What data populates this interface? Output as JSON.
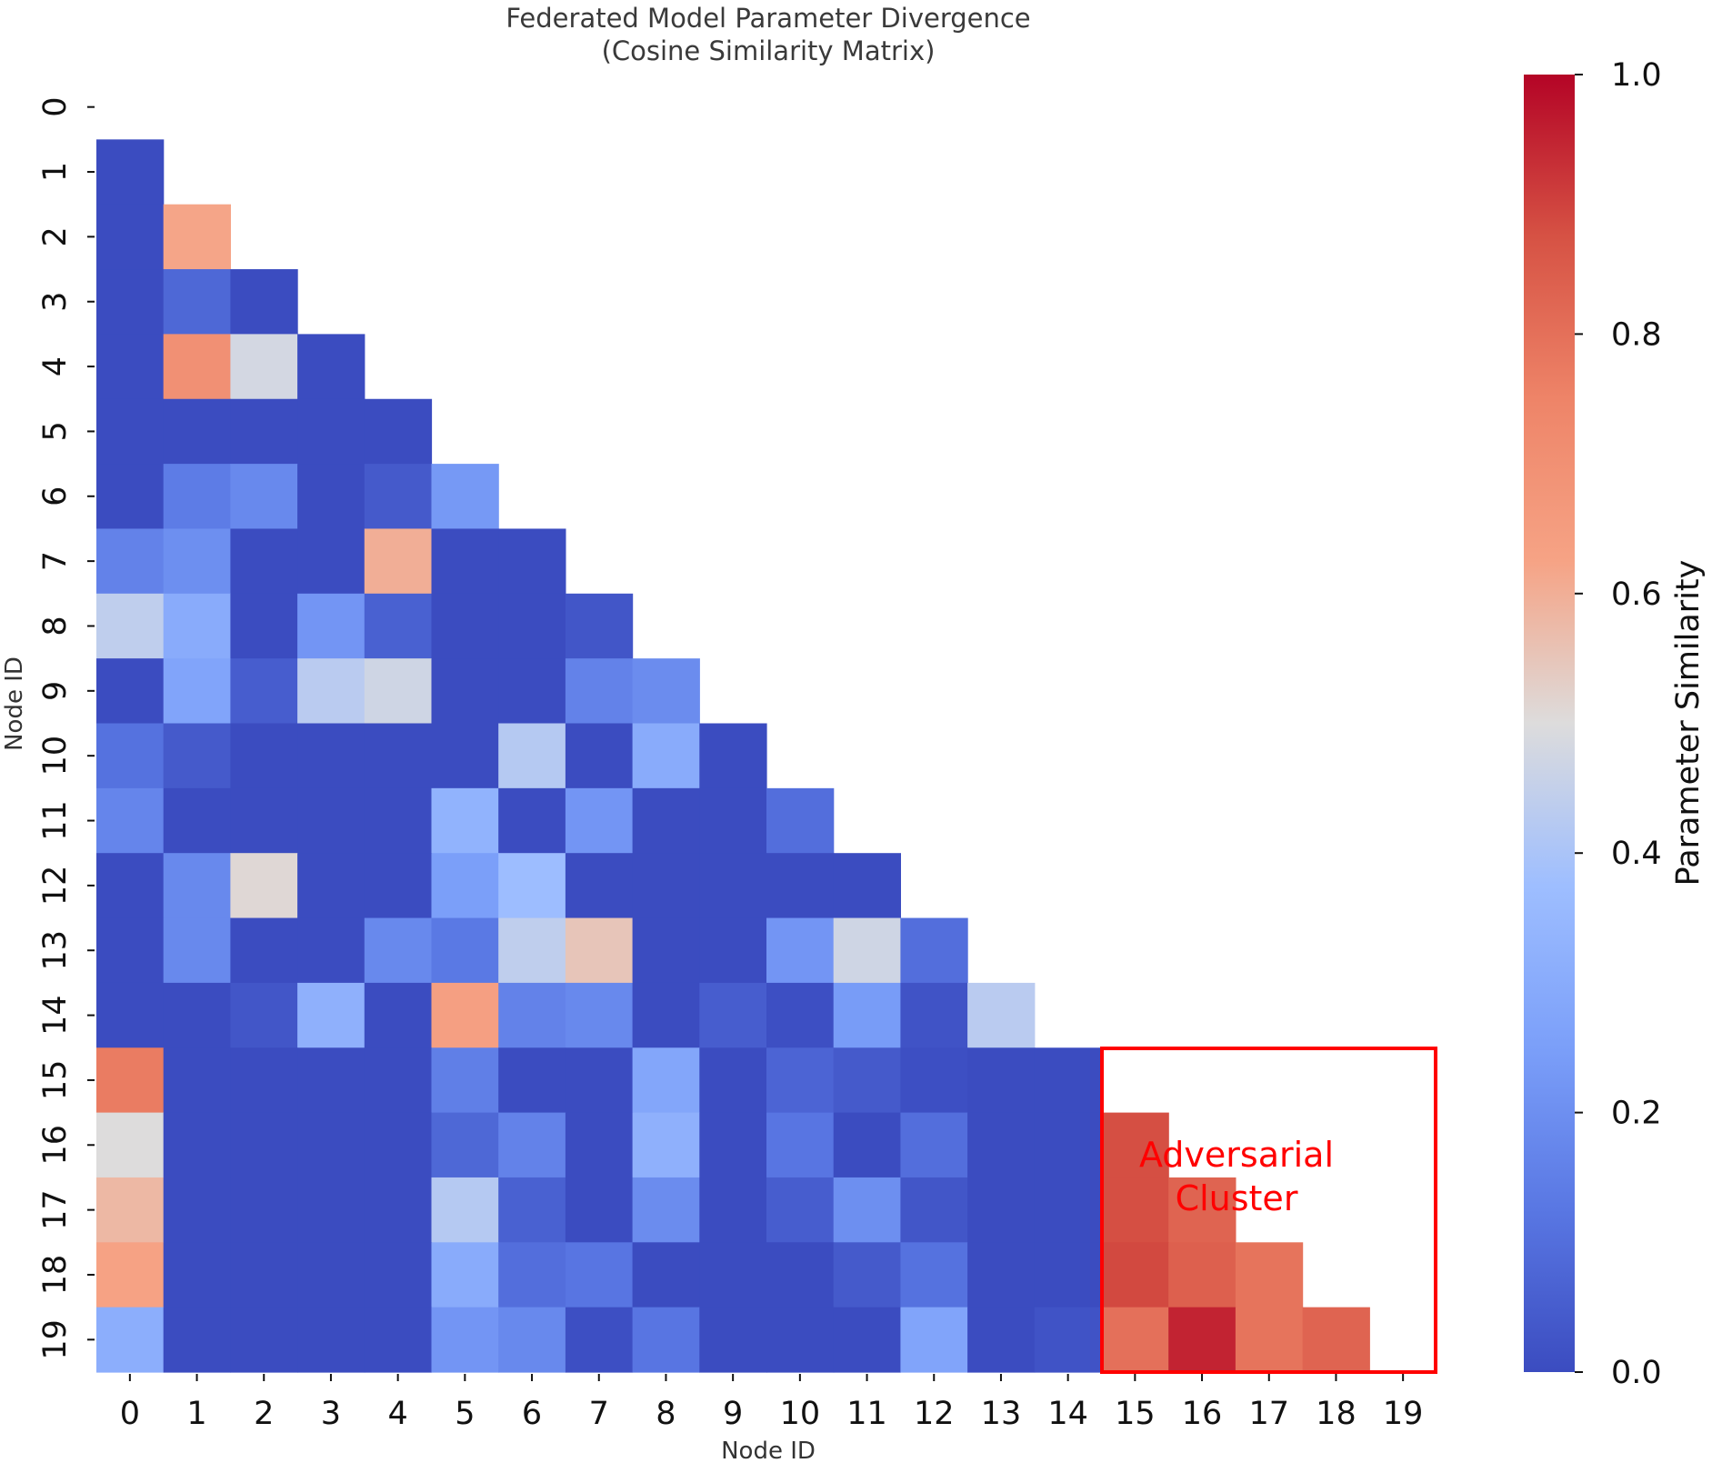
{
  "chart_data": {
    "type": "heatmap",
    "title": "Federated Model Parameter Divergence",
    "subtitle": "(Cosine Similarity Matrix)",
    "xlabel": "Node ID",
    "ylabel": "Node ID",
    "x_categories": [
      "0",
      "1",
      "2",
      "3",
      "4",
      "5",
      "6",
      "7",
      "8",
      "9",
      "10",
      "11",
      "12",
      "13",
      "14",
      "15",
      "16",
      "17",
      "18",
      "19"
    ],
    "y_categories": [
      "0",
      "1",
      "2",
      "3",
      "4",
      "5",
      "6",
      "7",
      "8",
      "9",
      "10",
      "11",
      "12",
      "13",
      "14",
      "15",
      "16",
      "17",
      "18",
      "19"
    ],
    "mask": "upper triangle including diagonal",
    "colormap": "coolwarm",
    "vmin": 0.0,
    "vmax": 1.0,
    "colorbar": {
      "label": "Parameter Similarity",
      "ticks": [
        "0.0",
        "0.2",
        "0.4",
        "0.6",
        "0.8",
        "1.0"
      ]
    },
    "values": [
      [],
      [
        0.0
      ],
      [
        0.0,
        0.62
      ],
      [
        0.0,
        0.08,
        0.0
      ],
      [
        0.0,
        0.7,
        0.48,
        0.0
      ],
      [
        0.0,
        0.0,
        0.0,
        0.0,
        0.0
      ],
      [
        0.0,
        0.14,
        0.18,
        0.0,
        0.04,
        0.23
      ],
      [
        0.16,
        0.2,
        0.0,
        0.0,
        0.6,
        0.0,
        0.0
      ],
      [
        0.44,
        0.3,
        0.0,
        0.22,
        0.06,
        0.0,
        0.0,
        0.03
      ],
      [
        0.0,
        0.27,
        0.05,
        0.43,
        0.47,
        0.0,
        0.0,
        0.16,
        0.19
      ],
      [
        0.11,
        0.04,
        0.0,
        0.0,
        0.0,
        0.0,
        0.42,
        0.0,
        0.3,
        0.0
      ],
      [
        0.17,
        0.0,
        0.0,
        0.0,
        0.0,
        0.33,
        0.0,
        0.22,
        0.0,
        0.0,
        0.1
      ],
      [
        0.0,
        0.18,
        0.51,
        0.0,
        0.0,
        0.25,
        0.37,
        0.0,
        0.0,
        0.0,
        0.0,
        0.0
      ],
      [
        0.0,
        0.18,
        0.0,
        0.0,
        0.18,
        0.13,
        0.44,
        0.55,
        0.0,
        0.0,
        0.22,
        0.47,
        0.1
      ],
      [
        0.0,
        0.0,
        0.03,
        0.32,
        0.0,
        0.64,
        0.16,
        0.18,
        0.0,
        0.05,
        0.01,
        0.24,
        0.02,
        0.43
      ],
      [
        0.77,
        0.0,
        0.0,
        0.0,
        0.0,
        0.15,
        0.0,
        0.0,
        0.28,
        0.0,
        0.07,
        0.04,
        0.01,
        0.0,
        0.0
      ],
      [
        0.5,
        0.0,
        0.0,
        0.0,
        0.0,
        0.08,
        0.16,
        0.0,
        0.32,
        0.0,
        0.12,
        0.0,
        0.1,
        0.0,
        0.0,
        0.88
      ],
      [
        0.58,
        0.0,
        0.0,
        0.0,
        0.0,
        0.42,
        0.06,
        0.0,
        0.19,
        0.0,
        0.05,
        0.2,
        0.03,
        0.0,
        0.0,
        0.88,
        0.83
      ],
      [
        0.63,
        0.0,
        0.0,
        0.0,
        0.0,
        0.3,
        0.1,
        0.12,
        0.0,
        0.0,
        0.0,
        0.04,
        0.11,
        0.0,
        0.0,
        0.89,
        0.84,
        0.79
      ],
      [
        0.31,
        0.0,
        0.0,
        0.0,
        0.0,
        0.22,
        0.18,
        0.01,
        0.12,
        0.0,
        0.0,
        0.0,
        0.27,
        0.0,
        0.02,
        0.8,
        0.95,
        0.79,
        0.83
      ]
    ],
    "annotation": {
      "text": [
        "Adversarial",
        "Cluster"
      ],
      "rows": [
        15,
        19
      ],
      "cols": [
        15,
        19
      ],
      "color": "#ff0000"
    },
    "grid": false
  }
}
